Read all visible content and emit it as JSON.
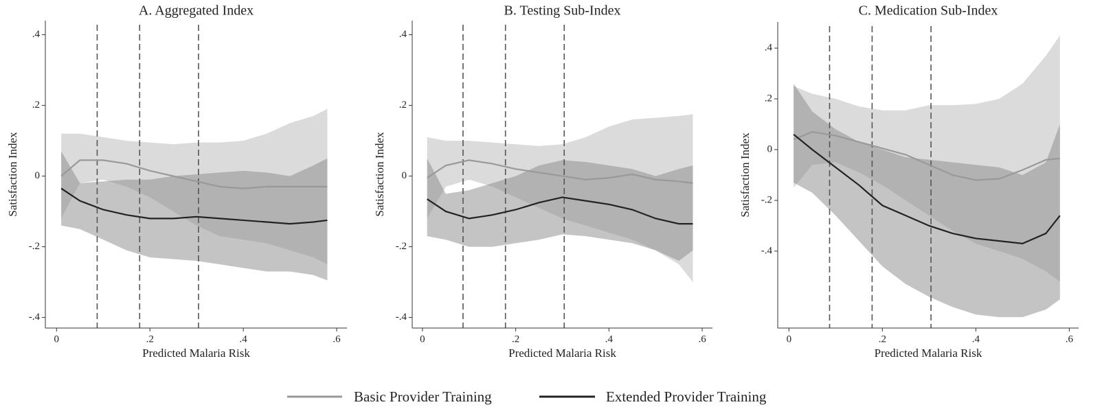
{
  "chart_data": [
    {
      "type": "line",
      "title": "A. Aggregated Index",
      "xlabel": "Predicted Malaria Risk",
      "ylabel": "Satisfaction Index",
      "x": [
        0.01,
        0.05,
        0.1,
        0.15,
        0.2,
        0.25,
        0.3,
        0.35,
        0.4,
        0.45,
        0.5,
        0.55,
        0.58
      ],
      "xlim": [
        -0.024,
        0.622
      ],
      "xticks": [
        0,
        {
          "value": 0.2,
          "label": ".2"
        },
        {
          "value": 0.4,
          "label": ".4"
        },
        {
          "value": 0.6,
          "label": ".6"
        }
      ],
      "ylim": [
        -0.43,
        0.44
      ],
      "yticks": [
        {
          "value": -0.4,
          "label": "-.4"
        },
        {
          "value": -0.2,
          "label": "-.2"
        },
        0,
        {
          "value": 0.2,
          "label": ".2"
        },
        {
          "value": 0.4,
          "label": ".4"
        }
      ],
      "vlines": [
        0.087,
        0.178,
        0.304
      ],
      "series": [
        {
          "name": "Basic Provider Training",
          "color": "#999999",
          "band_color": "#b8b8b8",
          "values": [
            0.0,
            0.045,
            0.045,
            0.035,
            0.015,
            0.0,
            -0.015,
            -0.03,
            -0.035,
            -0.03,
            -0.03,
            -0.03,
            -0.03
          ],
          "upper": [
            0.12,
            0.12,
            0.11,
            0.1,
            0.095,
            0.09,
            0.095,
            0.095,
            0.1,
            0.12,
            0.15,
            0.17,
            0.19
          ],
          "lower": [
            -0.12,
            -0.02,
            -0.01,
            -0.03,
            -0.06,
            -0.1,
            -0.14,
            -0.17,
            -0.18,
            -0.19,
            -0.21,
            -0.23,
            -0.25
          ]
        },
        {
          "name": "Extended Provider Training",
          "color": "#222222",
          "band_color": "#8a8a8a",
          "values": [
            -0.035,
            -0.07,
            -0.095,
            -0.11,
            -0.12,
            -0.12,
            -0.115,
            -0.12,
            -0.125,
            -0.13,
            -0.135,
            -0.13,
            -0.125
          ],
          "upper": [
            0.07,
            -0.02,
            -0.015,
            -0.01,
            -0.01,
            0.0,
            0.005,
            0.01,
            0.015,
            0.01,
            0.0,
            0.03,
            0.05
          ],
          "lower": [
            -0.14,
            -0.15,
            -0.18,
            -0.21,
            -0.23,
            -0.235,
            -0.24,
            -0.25,
            -0.26,
            -0.27,
            -0.27,
            -0.28,
            -0.295
          ]
        }
      ]
    },
    {
      "type": "line",
      "title": "B. Testing Sub-Index",
      "xlabel": "Predicted Malaria Risk",
      "ylabel": "Satisfaction Index",
      "x": [
        0.01,
        0.05,
        0.1,
        0.15,
        0.2,
        0.25,
        0.3,
        0.35,
        0.4,
        0.45,
        0.5,
        0.55,
        0.58
      ],
      "xlim": [
        -0.022,
        0.622
      ],
      "xticks": [
        0,
        {
          "value": 0.2,
          "label": ".2"
        },
        {
          "value": 0.4,
          "label": ".4"
        },
        {
          "value": 0.6,
          "label": ".6"
        }
      ],
      "ylim": [
        -0.43,
        0.44
      ],
      "yticks": [
        {
          "value": -0.4,
          "label": "-.4"
        },
        {
          "value": -0.2,
          "label": "-.2"
        },
        0,
        {
          "value": 0.2,
          "label": ".2"
        },
        {
          "value": 0.4,
          "label": ".4"
        }
      ],
      "vlines": [
        0.087,
        0.178,
        0.304
      ],
      "series": [
        {
          "name": "Basic Provider Training",
          "color": "#999999",
          "band_color": "#b8b8b8",
          "values": [
            -0.005,
            0.03,
            0.045,
            0.035,
            0.02,
            0.01,
            0.0,
            -0.01,
            -0.005,
            0.005,
            -0.01,
            -0.015,
            -0.02
          ],
          "upper": [
            0.11,
            0.1,
            0.1,
            0.095,
            0.09,
            0.085,
            0.09,
            0.11,
            0.14,
            0.16,
            0.165,
            0.17,
            0.175
          ],
          "lower": [
            -0.12,
            -0.03,
            -0.01,
            -0.03,
            -0.06,
            -0.09,
            -0.12,
            -0.14,
            -0.16,
            -0.18,
            -0.21,
            -0.25,
            -0.3
          ]
        },
        {
          "name": "Extended Provider Training",
          "color": "#222222",
          "band_color": "#8a8a8a",
          "values": [
            -0.065,
            -0.1,
            -0.12,
            -0.11,
            -0.095,
            -0.075,
            -0.06,
            -0.07,
            -0.08,
            -0.095,
            -0.12,
            -0.135,
            -0.135
          ],
          "upper": [
            0.05,
            -0.05,
            -0.04,
            -0.02,
            0.0,
            0.03,
            0.045,
            0.04,
            0.03,
            0.02,
            0.0,
            0.02,
            0.03
          ],
          "lower": [
            -0.17,
            -0.18,
            -0.2,
            -0.2,
            -0.19,
            -0.18,
            -0.165,
            -0.17,
            -0.18,
            -0.19,
            -0.21,
            -0.24,
            -0.21
          ]
        }
      ]
    },
    {
      "type": "line",
      "title": "C. Medication Sub-Index",
      "xlabel": "Predicted Malaria Risk",
      "ylabel": "Satisfaction Index",
      "x": [
        0.01,
        0.05,
        0.1,
        0.15,
        0.2,
        0.25,
        0.3,
        0.35,
        0.4,
        0.45,
        0.5,
        0.55,
        0.58
      ],
      "xlim": [
        -0.024,
        0.62
      ],
      "xticks": [
        0,
        {
          "value": 0.2,
          "label": ".2"
        },
        {
          "value": 0.4,
          "label": ".4"
        },
        {
          "value": 0.6,
          "label": ".6"
        }
      ],
      "ylim": [
        -0.703,
        0.503
      ],
      "yticks": [
        {
          "value": -0.4,
          "label": "-.4"
        },
        {
          "value": -0.2,
          "label": "-.2"
        },
        0,
        {
          "value": 0.2,
          "label": ".2"
        },
        {
          "value": 0.4,
          "label": ".4"
        }
      ],
      "vlines": [
        0.087,
        0.178,
        0.304
      ],
      "series": [
        {
          "name": "Basic Provider Training",
          "color": "#999999",
          "band_color": "#b8b8b8",
          "values": [
            0.04,
            0.07,
            0.055,
            0.03,
            0.005,
            -0.02,
            -0.06,
            -0.1,
            -0.12,
            -0.115,
            -0.08,
            -0.04,
            -0.035
          ],
          "upper": [
            0.25,
            0.22,
            0.2,
            0.17,
            0.155,
            0.155,
            0.175,
            0.175,
            0.18,
            0.2,
            0.26,
            0.37,
            0.45
          ],
          "lower": [
            -0.15,
            -0.06,
            -0.05,
            -0.09,
            -0.14,
            -0.2,
            -0.26,
            -0.32,
            -0.37,
            -0.4,
            -0.43,
            -0.48,
            -0.52
          ]
        },
        {
          "name": "Extended Provider Training",
          "color": "#222222",
          "band_color": "#8a8a8a",
          "values": [
            0.06,
            0.0,
            -0.07,
            -0.14,
            -0.22,
            -0.26,
            -0.3,
            -0.33,
            -0.35,
            -0.36,
            -0.37,
            -0.33,
            -0.26
          ],
          "upper": [
            0.26,
            0.15,
            0.08,
            0.03,
            0.0,
            -0.03,
            -0.04,
            -0.05,
            -0.06,
            -0.07,
            -0.1,
            -0.05,
            0.1
          ],
          "lower": [
            -0.13,
            -0.17,
            -0.26,
            -0.36,
            -0.46,
            -0.53,
            -0.58,
            -0.62,
            -0.65,
            -0.66,
            -0.66,
            -0.63,
            -0.59
          ]
        }
      ]
    }
  ]
}
